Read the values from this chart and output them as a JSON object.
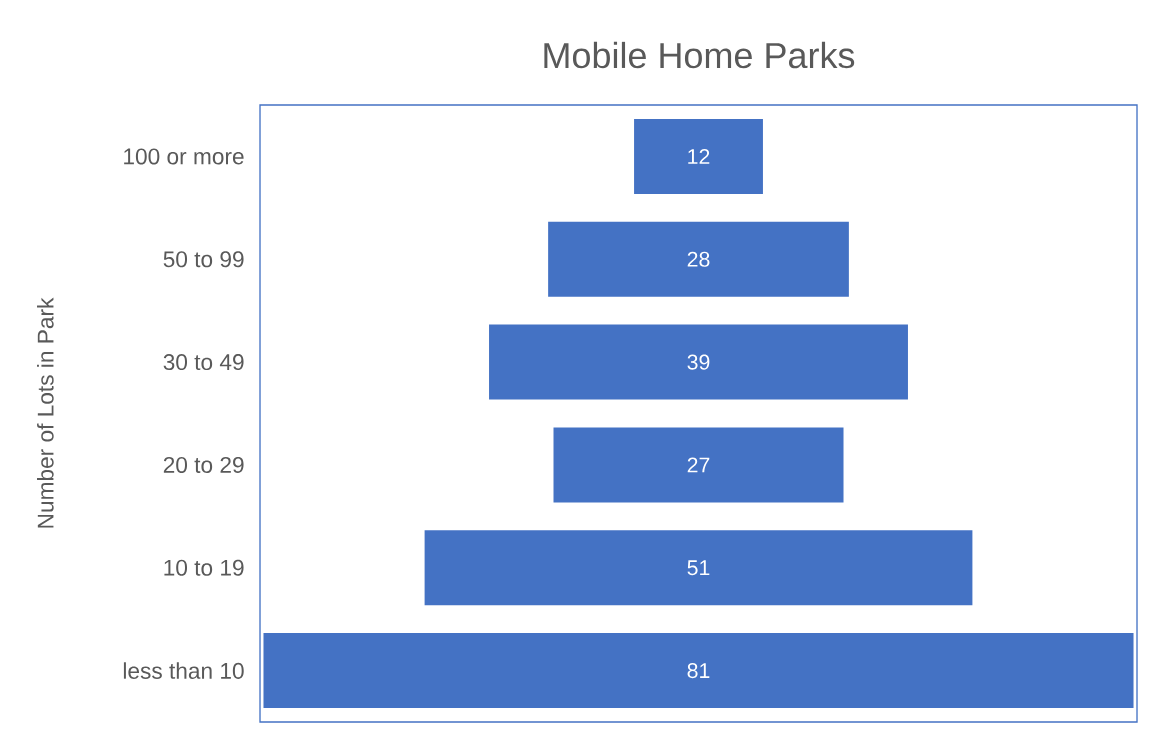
{
  "chart_data": {
    "type": "other",
    "title": "Mobile Home Parks",
    "ylabel": "Number of Lots in Park",
    "categories": [
      "100 or more",
      "50 to 99",
      "30 to 49",
      "20 to 29",
      "10 to 19",
      "less than 10"
    ],
    "values": [
      12,
      28,
      39,
      27,
      51,
      81
    ],
    "color": "#4472c4",
    "data_labels": true
  }
}
